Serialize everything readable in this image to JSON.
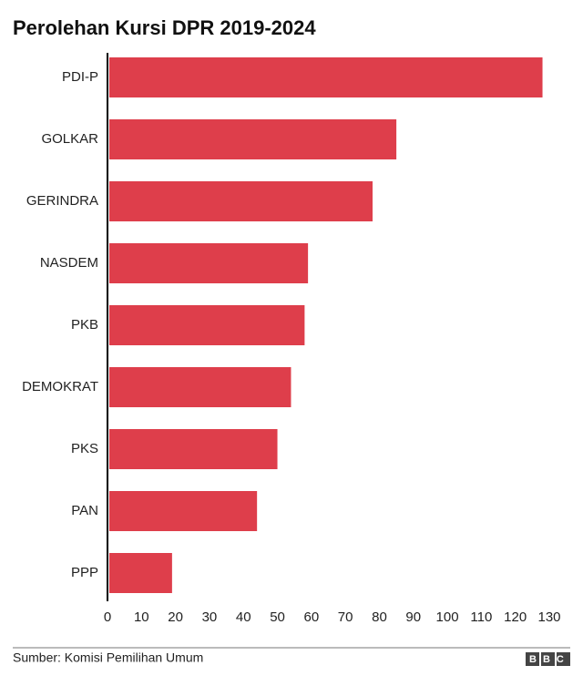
{
  "chart_data": {
    "type": "bar",
    "orientation": "horizontal",
    "title": "Perolehan Kursi DPR 2019-2024",
    "categories": [
      "PDI-P",
      "GOLKAR",
      "GERINDRA",
      "NASDEM",
      "PKB",
      "DEMOKRAT",
      "PKS",
      "PAN",
      "PPP"
    ],
    "values": [
      128,
      85,
      78,
      59,
      58,
      54,
      50,
      44,
      19
    ],
    "color": "#de3e4b",
    "xlim": [
      0,
      130
    ],
    "xticks": [
      0,
      10,
      20,
      30,
      40,
      50,
      60,
      70,
      80,
      90,
      100,
      110,
      120,
      130
    ],
    "grid": false,
    "source": "Sumber: Komisi Pemilihan Umum",
    "logo": "BBC"
  }
}
